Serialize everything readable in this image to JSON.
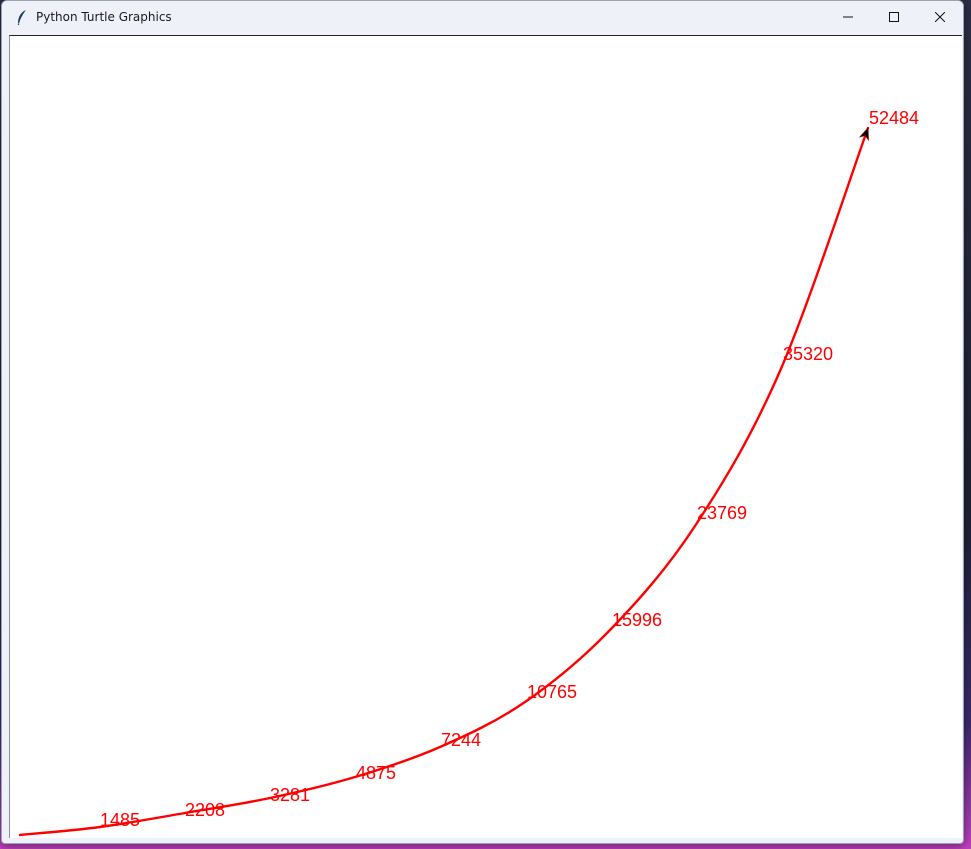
{
  "window": {
    "title": "Python Turtle Graphics",
    "minimize_icon": "minimize-icon",
    "maximize_icon": "maximize-icon",
    "close_icon": "close-icon",
    "app_icon": "feather-icon"
  },
  "canvas": {
    "background": "#ffffff",
    "pen_color": "#ff0000",
    "turtle_color": "#000000",
    "labels": [
      "1485",
      "2208",
      "3281",
      "4875",
      "7244",
      "10765",
      "15996",
      "23769",
      "35320",
      "52484"
    ]
  }
}
